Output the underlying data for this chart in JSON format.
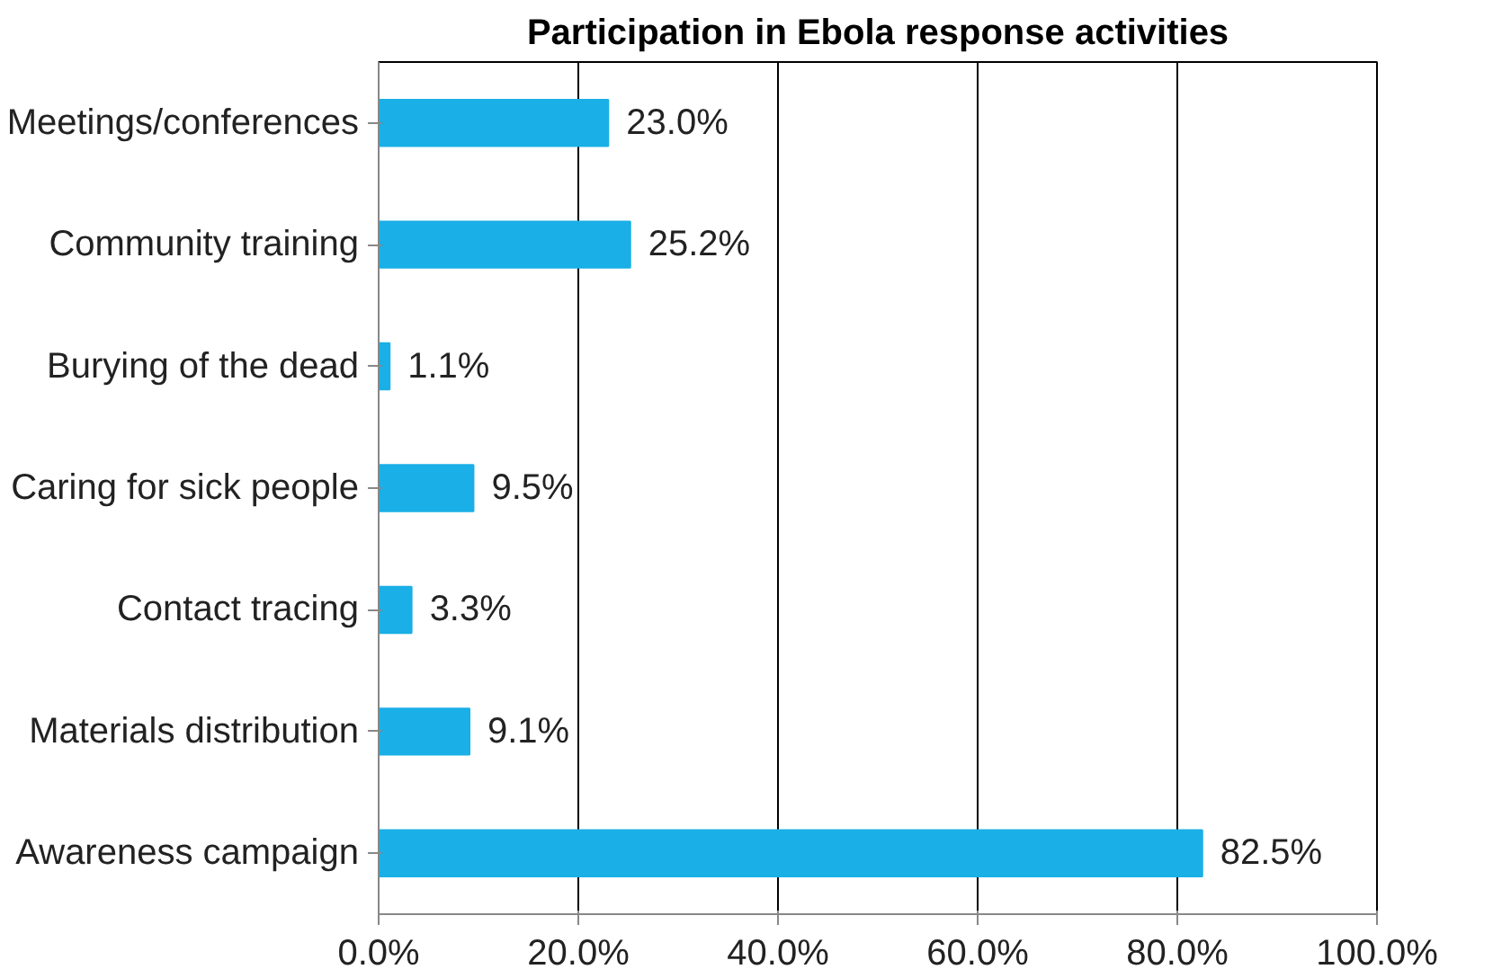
{
  "chart_data": {
    "type": "bar",
    "orientation": "horizontal",
    "title": "Participation in Ebola response activities",
    "categories": [
      "Meetings/conferences",
      "Community training",
      "Burying of the dead",
      "Caring for sick people",
      "Contact tracing",
      "Materials distribution",
      "Awareness campaign"
    ],
    "values": [
      23.0,
      25.2,
      1.1,
      9.5,
      3.3,
      9.1,
      82.5
    ],
    "value_labels": [
      "23.0%",
      "25.2%",
      "1.1%",
      "9.5%",
      "3.3%",
      "9.1%",
      "82.5%"
    ],
    "color": "#1aafe6",
    "xlim": [
      0,
      100
    ],
    "xticks": [
      {
        "value": 0,
        "label": "0.0%"
      },
      {
        "value": 20,
        "label": "20.0%"
      },
      {
        "value": 40,
        "label": "40.0%"
      },
      {
        "value": 60,
        "label": "60.0%"
      },
      {
        "value": 80,
        "label": "80.0%"
      },
      {
        "value": 100,
        "label": "100.0%"
      }
    ],
    "grid": "x"
  }
}
